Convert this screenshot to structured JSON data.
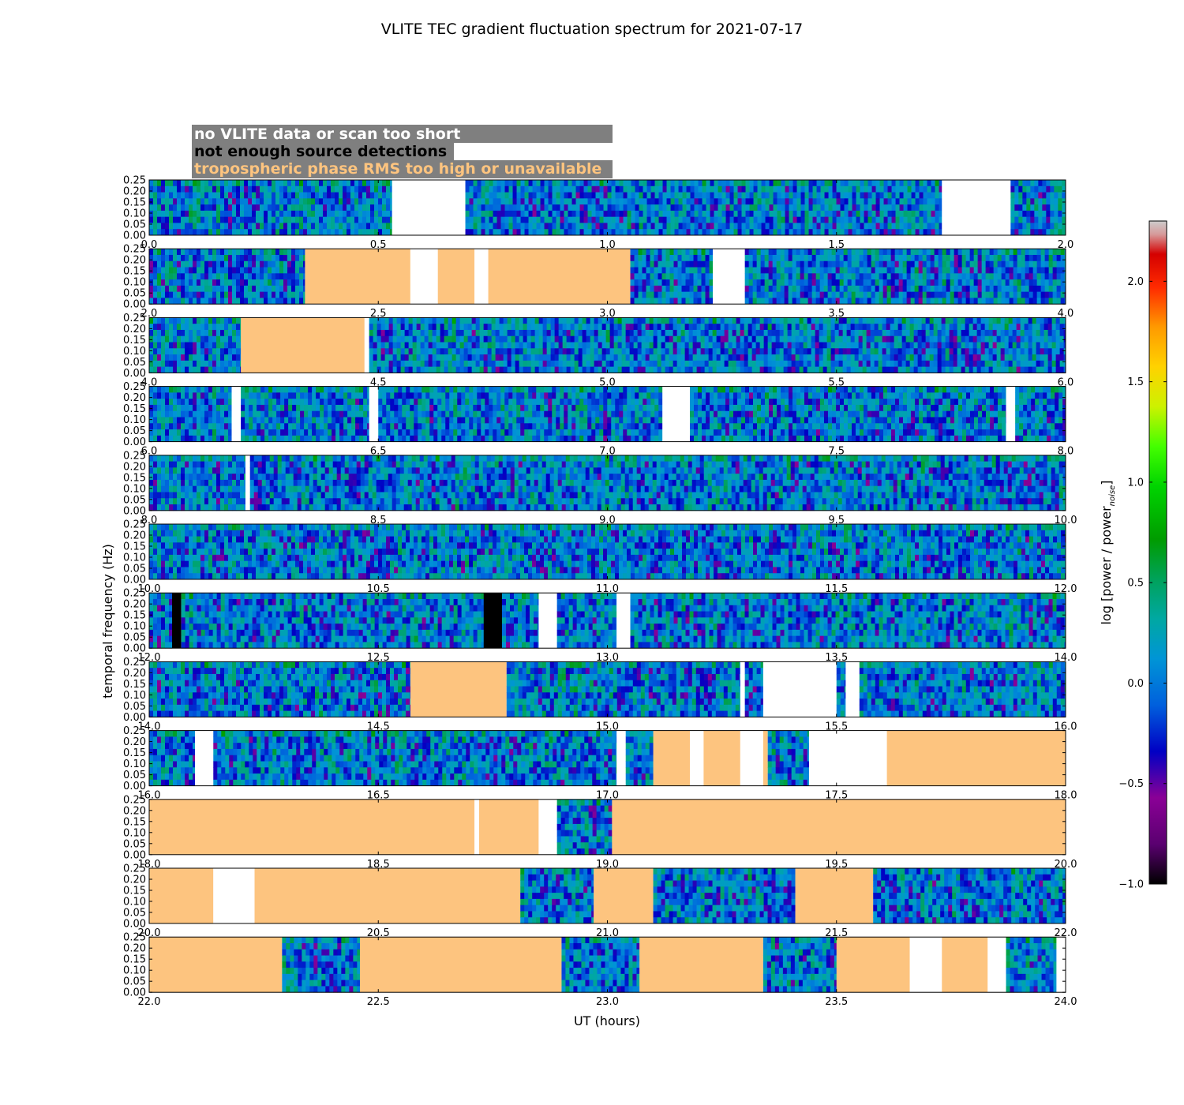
{
  "chart_data": {
    "type": "heatmap",
    "title": "VLITE TEC gradient fluctuation spectrum for 2021-07-17",
    "xlabel": "UT (hours)",
    "ylabel": "temporal frequency (Hz)",
    "ylim": [
      0,
      0.25
    ],
    "y_ticks": [
      "0.00",
      "0.05",
      "0.10",
      "0.15",
      "0.20",
      "0.25"
    ],
    "colorbar": {
      "label": "log [power / power",
      "label_sub": "noise",
      "label_end": "]",
      "range": [
        -1.0,
        2.3
      ],
      "ticks": [
        "−1.0",
        "−0.5",
        "0.0",
        "0.5",
        "1.0",
        "1.5",
        "2.0"
      ],
      "tick_values": [
        -1.0,
        -0.5,
        0.0,
        0.5,
        1.0,
        1.5,
        2.0
      ]
    },
    "legend": [
      {
        "text": "no VLITE data or scan too short",
        "color": "#ffffff"
      },
      {
        "text": "not enough source detections",
        "color": "#000000"
      },
      {
        "text": "tropospheric phase RMS too high or unavailable",
        "color": "#fdc47f"
      }
    ],
    "status_colors": {
      "no_data": "#ffffff",
      "few_detections": "#000000",
      "tropo": "#fdc47f"
    },
    "panels": [
      {
        "range": [
          0,
          2
        ],
        "x_ticks": [
          "0.0",
          "0.5",
          "1.0",
          "1.5",
          "2.0"
        ],
        "segments": [
          [
            "data",
            0.0,
            0.53
          ],
          [
            "none",
            0.53,
            0.69
          ],
          [
            "data",
            0.69,
            1.73
          ],
          [
            "none",
            1.73,
            1.88
          ],
          [
            "data",
            1.88,
            2.0
          ]
        ]
      },
      {
        "range": [
          2,
          4
        ],
        "x_ticks": [
          "2.0",
          "2.5",
          "3.0",
          "3.5",
          "4.0"
        ],
        "segments": [
          [
            "data",
            2.0,
            2.34
          ],
          [
            "tropo",
            2.34,
            2.57
          ],
          [
            "none",
            2.57,
            2.63
          ],
          [
            "tropo",
            2.63,
            2.71
          ],
          [
            "none",
            2.71,
            2.74
          ],
          [
            "tropo",
            2.74,
            3.05
          ],
          [
            "data",
            3.05,
            3.23
          ],
          [
            "none",
            3.23,
            3.3
          ],
          [
            "data",
            3.3,
            4.0
          ]
        ]
      },
      {
        "range": [
          4,
          6
        ],
        "x_ticks": [
          "4.0",
          "4.5",
          "5.0",
          "5.5",
          "6.0"
        ],
        "segments": [
          [
            "data",
            4.0,
            4.2
          ],
          [
            "tropo",
            4.2,
            4.47
          ],
          [
            "none",
            4.47,
            4.48
          ],
          [
            "data",
            4.48,
            6.0
          ]
        ]
      },
      {
        "range": [
          6,
          8
        ],
        "x_ticks": [
          "6.0",
          "6.5",
          "7.0",
          "7.5",
          "8.0"
        ],
        "segments": [
          [
            "data",
            6.0,
            6.18
          ],
          [
            "none",
            6.18,
            6.2
          ],
          [
            "data",
            6.2,
            6.48
          ],
          [
            "none",
            6.48,
            6.5
          ],
          [
            "data",
            6.5,
            7.12
          ],
          [
            "none",
            7.12,
            7.18
          ],
          [
            "data",
            7.18,
            7.87
          ],
          [
            "none",
            7.87,
            7.89
          ],
          [
            "data",
            7.89,
            8.0
          ]
        ]
      },
      {
        "range": [
          8,
          10
        ],
        "x_ticks": [
          "8.0",
          "8.5",
          "9.0",
          "9.5",
          "10.0"
        ],
        "segments": [
          [
            "data",
            8.0,
            8.21
          ],
          [
            "none",
            8.21,
            8.22
          ],
          [
            "data",
            8.22,
            10.0
          ]
        ]
      },
      {
        "range": [
          10,
          12
        ],
        "x_ticks": [
          "10.0",
          "10.5",
          "11.0",
          "11.5",
          "12.0"
        ],
        "segments": [
          [
            "data",
            10.0,
            12.0
          ]
        ]
      },
      {
        "range": [
          12,
          14
        ],
        "x_ticks": [
          "12.0",
          "12.5",
          "13.0",
          "13.5",
          "14.0"
        ],
        "segments": [
          [
            "data",
            12.0,
            12.05
          ],
          [
            "black",
            12.05,
            12.07
          ],
          [
            "data",
            12.07,
            12.73
          ],
          [
            "black",
            12.73,
            12.77
          ],
          [
            "data",
            12.77,
            12.85
          ],
          [
            "none",
            12.85,
            12.89
          ],
          [
            "data",
            12.89,
            13.02
          ],
          [
            "none",
            13.02,
            13.05
          ],
          [
            "data",
            13.05,
            14.0
          ]
        ]
      },
      {
        "range": [
          14,
          16
        ],
        "x_ticks": [
          "14.0",
          "14.5",
          "15.0",
          "15.5",
          "16.0"
        ],
        "segments": [
          [
            "data",
            14.0,
            14.57
          ],
          [
            "tropo",
            14.57,
            14.78
          ],
          [
            "data",
            14.78,
            15.29
          ],
          [
            "none",
            15.29,
            15.3
          ],
          [
            "data",
            15.3,
            15.34
          ],
          [
            "none",
            15.34,
            15.5
          ],
          [
            "data",
            15.5,
            15.52
          ],
          [
            "none",
            15.52,
            15.55
          ],
          [
            "data",
            15.55,
            16.0
          ]
        ]
      },
      {
        "range": [
          16,
          18
        ],
        "x_ticks": [
          "16.0",
          "16.5",
          "17.0",
          "17.5",
          "18.0"
        ],
        "segments": [
          [
            "data",
            16.0,
            16.1
          ],
          [
            "none",
            16.1,
            16.14
          ],
          [
            "data",
            16.14,
            17.02
          ],
          [
            "none",
            17.02,
            17.04
          ],
          [
            "data",
            17.04,
            17.1
          ],
          [
            "tropo",
            17.1,
            17.18
          ],
          [
            "none",
            17.18,
            17.21
          ],
          [
            "tropo",
            17.21,
            17.29
          ],
          [
            "none",
            17.29,
            17.34
          ],
          [
            "tropo",
            17.34,
            17.35
          ],
          [
            "data",
            17.35,
            17.44
          ],
          [
            "none",
            17.44,
            17.61
          ],
          [
            "tropo",
            17.61,
            18.0
          ]
        ]
      },
      {
        "range": [
          18,
          20
        ],
        "x_ticks": [
          "18.0",
          "18.5",
          "19.0",
          "19.5",
          "20.0"
        ],
        "segments": [
          [
            "tropo",
            18.0,
            18.71
          ],
          [
            "none",
            18.71,
            18.72
          ],
          [
            "tropo",
            18.72,
            18.85
          ],
          [
            "none",
            18.85,
            18.89
          ],
          [
            "data",
            18.89,
            19.01
          ],
          [
            "tropo",
            19.01,
            20.0
          ]
        ]
      },
      {
        "range": [
          20,
          22
        ],
        "x_ticks": [
          "20.0",
          "20.5",
          "21.0",
          "21.5",
          "22.0"
        ],
        "segments": [
          [
            "tropo",
            20.0,
            20.14
          ],
          [
            "none",
            20.14,
            20.23
          ],
          [
            "tropo",
            20.23,
            20.81
          ],
          [
            "data",
            20.81,
            20.97
          ],
          [
            "tropo",
            20.97,
            21.1
          ],
          [
            "data",
            21.1,
            21.41
          ],
          [
            "tropo",
            21.41,
            21.58
          ],
          [
            "data",
            21.58,
            22.0
          ]
        ]
      },
      {
        "range": [
          22,
          24
        ],
        "x_ticks": [
          "22.0",
          "22.5",
          "23.0",
          "23.5",
          "24.0"
        ],
        "segments": [
          [
            "tropo",
            22.0,
            22.29
          ],
          [
            "data",
            22.29,
            22.46
          ],
          [
            "tropo",
            22.46,
            22.9
          ],
          [
            "data",
            22.9,
            23.07
          ],
          [
            "tropo",
            23.07,
            23.34
          ],
          [
            "data",
            23.34,
            23.5
          ],
          [
            "tropo",
            23.5,
            23.66
          ],
          [
            "none",
            23.66,
            23.73
          ],
          [
            "tropo",
            23.73,
            23.83
          ],
          [
            "none",
            23.83,
            23.87
          ],
          [
            "data",
            23.87,
            23.98
          ],
          [
            "none",
            23.98,
            24.0
          ]
        ]
      }
    ]
  }
}
